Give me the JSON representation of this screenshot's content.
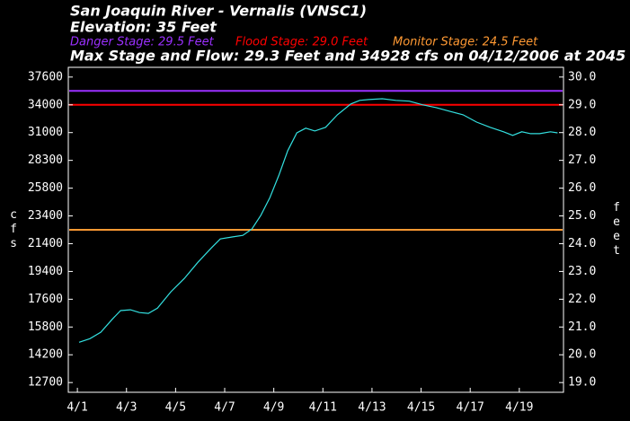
{
  "chart_data": {
    "type": "line",
    "title": "San Joaquin River - Vernalis (VNSC1)",
    "subtitle": "Elevation: 35 Feet",
    "annotation": "Max Stage and Flow: 29.3 Feet and 34928 cfs on 04/12/2006 at 2045 UTC",
    "ylabel_left": "cfs",
    "ylabel_right": "feet",
    "stages": [
      {
        "name": "Danger Stage: 29.5 Feet",
        "value": 29.5,
        "color": "#9b30ff"
      },
      {
        "name": "Flood Stage: 29.0 Feet",
        "value": 29.0,
        "color": "#ff0000"
      },
      {
        "name": "Monitor Stage: 24.5 Feet",
        "value": 24.5,
        "color": "#ff9933"
      }
    ],
    "xlim": [
      0.63,
      20.8
    ],
    "xticks": [
      {
        "value": 1,
        "label": "4/1"
      },
      {
        "value": 3,
        "label": "4/3"
      },
      {
        "value": 5,
        "label": "4/5"
      },
      {
        "value": 7,
        "label": "4/7"
      },
      {
        "value": 9,
        "label": "4/9"
      },
      {
        "value": 11,
        "label": "4/11"
      },
      {
        "value": 13,
        "label": "4/13"
      },
      {
        "value": 15,
        "label": "4/15"
      },
      {
        "value": 17,
        "label": "4/17"
      },
      {
        "value": 19,
        "label": "4/19"
      }
    ],
    "ylim": [
      18.65,
      30.35
    ],
    "yticks": [
      {
        "value": 30,
        "label": "30.0"
      },
      {
        "value": 29,
        "label": "29.0"
      },
      {
        "value": 28,
        "label": "28.0"
      },
      {
        "value": 27,
        "label": "27.0"
      },
      {
        "value": 26,
        "label": "26.0"
      },
      {
        "value": 25,
        "label": "25.0"
      },
      {
        "value": 24,
        "label": "24.0"
      },
      {
        "value": 23,
        "label": "23.0"
      },
      {
        "value": 22,
        "label": "22.0"
      },
      {
        "value": 21,
        "label": "21.0"
      },
      {
        "value": 20,
        "label": "20.0"
      },
      {
        "value": 19,
        "label": "19.0"
      }
    ],
    "cfs_ticks": [
      {
        "value": 37600,
        "stage": 30
      },
      {
        "value": 34000,
        "stage": 29
      },
      {
        "value": 31000,
        "stage": 28
      },
      {
        "value": 28300,
        "stage": 27
      },
      {
        "value": 25800,
        "stage": 26
      },
      {
        "value": 23400,
        "stage": 25
      },
      {
        "value": 21400,
        "stage": 24
      },
      {
        "value": 19400,
        "stage": 23
      },
      {
        "value": 17600,
        "stage": 22
      },
      {
        "value": 15800,
        "stage": 21
      },
      {
        "value": 14200,
        "stage": 20
      },
      {
        "value": 12700,
        "stage": 19
      }
    ],
    "series": [
      {
        "color": "#33e0e0",
        "x": [
          1.07,
          1.51,
          1.95,
          2.43,
          2.76,
          3.16,
          3.53,
          3.89,
          4.26,
          4.81,
          5.36,
          5.91,
          6.46,
          6.82,
          7.3,
          7.74,
          8.11,
          8.47,
          8.84,
          9.21,
          9.57,
          9.94,
          10.3,
          10.67,
          11.11,
          11.59,
          12.14,
          12.5,
          12.87,
          13.42,
          13.97,
          14.52,
          15.07,
          15.62,
          16.16,
          16.71,
          17.26,
          17.81,
          18.36,
          18.73,
          19.1,
          19.46,
          19.83,
          20.27,
          20.56
        ],
        "values": [
          20.45,
          20.58,
          20.81,
          21.29,
          21.59,
          21.62,
          21.52,
          21.49,
          21.68,
          22.27,
          22.75,
          23.33,
          23.85,
          24.17,
          24.24,
          24.3,
          24.53,
          25.02,
          25.66,
          26.47,
          27.35,
          27.99,
          28.16,
          28.06,
          28.19,
          28.64,
          29.03,
          29.16,
          29.19,
          29.22,
          29.16,
          29.13,
          29.0,
          28.9,
          28.77,
          28.64,
          28.38,
          28.19,
          28.03,
          27.9,
          28.03,
          27.96,
          27.96,
          28.03,
          27.99
        ]
      }
    ]
  }
}
